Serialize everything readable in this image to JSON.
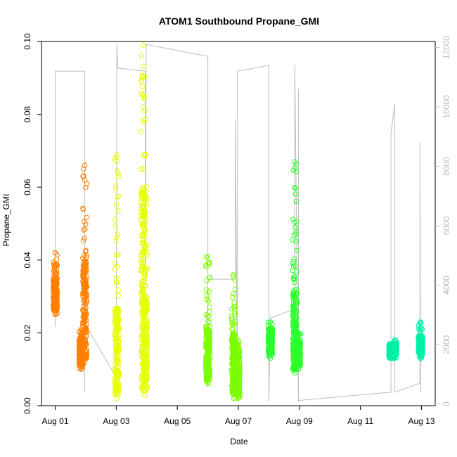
{
  "chart_data": {
    "type": "scatter",
    "title": "ATOM1 Southbound Propane_GMI",
    "xlabel": "Date",
    "ylabel": "Propane_GMI",
    "x_ticks": [
      "Aug 01",
      "Aug 03",
      "Aug 05",
      "Aug 07",
      "Aug 09",
      "Aug 11",
      "Aug 13"
    ],
    "x_tick_days": [
      1,
      3,
      5,
      7,
      9,
      11,
      13
    ],
    "xlim_days": [
      0.55,
      13.45
    ],
    "ylim": [
      0,
      0.1
    ],
    "y_ticks": [
      "0.00",
      "0.02",
      "0.04",
      "0.06",
      "0.08",
      "0.10"
    ],
    "y_tick_values": [
      0,
      0.02,
      0.04,
      0.06,
      0.08,
      0.1
    ],
    "y2_ticks": [
      "0",
      "2000",
      "4000",
      "6000",
      "8000",
      "10000",
      "12000"
    ],
    "y2_tick_values": [
      0,
      2000,
      4000,
      6000,
      8000,
      10000,
      12000
    ],
    "y2lim": [
      -55,
      12200
    ],
    "grid": false,
    "legend": "none",
    "series": [
      {
        "color": "#ff7f00",
        "clusters": [
          {
            "day": 1.0,
            "low": 0.025,
            "high": 0.042,
            "dense_low": 0.026,
            "dense_high": 0.035
          },
          {
            "day": 1.85,
            "low": 0.01,
            "high": 0.021,
            "dense_low": 0.011,
            "dense_high": 0.019
          },
          {
            "day": 1.97,
            "low": 0.012,
            "high": 0.066,
            "dense_low": 0.013,
            "dense_high": 0.04
          }
        ]
      },
      {
        "color": "#e6ff00",
        "clusters": [
          {
            "day": 3.02,
            "low": 0.002,
            "high": 0.069,
            "dense_low": 0.003,
            "dense_high": 0.027
          },
          {
            "day": 3.88,
            "low": 0.003,
            "high": 0.099,
            "dense_low": 0.004,
            "dense_high": 0.06
          },
          {
            "day": 3.95,
            "low": 0.003,
            "high": 0.069,
            "dense_low": 0.004,
            "dense_high": 0.03
          }
        ]
      },
      {
        "color": "#7cfc00",
        "clusters": [
          {
            "day": 6.0,
            "low": 0.006,
            "high": 0.041,
            "dense_low": 0.007,
            "dense_high": 0.022
          },
          {
            "day": 6.85,
            "low": 0.002,
            "high": 0.036,
            "dense_low": 0.003,
            "dense_high": 0.02
          },
          {
            "day": 6.98,
            "low": 0.002,
            "high": 0.018,
            "dense_low": 0.003,
            "dense_high": 0.016
          }
        ]
      },
      {
        "color": "#2aff2a",
        "clusters": [
          {
            "day": 8.05,
            "low": 0.013,
            "high": 0.023,
            "dense_low": 0.014,
            "dense_high": 0.021
          },
          {
            "day": 8.85,
            "low": 0.009,
            "high": 0.067,
            "dense_low": 0.01,
            "dense_high": 0.032
          },
          {
            "day": 8.97,
            "low": 0.01,
            "high": 0.02,
            "dense_low": 0.011,
            "dense_high": 0.018
          }
        ]
      },
      {
        "color": "#00f0a8",
        "clusters": [
          {
            "day": 12.0,
            "low": 0.013,
            "high": 0.017,
            "dense_low": 0.013,
            "dense_high": 0.017
          },
          {
            "day": 12.12,
            "low": 0.013,
            "high": 0.018,
            "dense_low": 0.014,
            "dense_high": 0.017
          },
          {
            "day": 12.97,
            "low": 0.013,
            "high": 0.023,
            "dense_low": 0.014,
            "dense_high": 0.019
          }
        ]
      }
    ],
    "secondary_series": {
      "color": "#bdbdbd",
      "points": [
        [
          1.0,
          11200
        ],
        [
          1.0,
          2600
        ],
        [
          1.0,
          11200
        ],
        [
          1.97,
          11200
        ],
        [
          1.97,
          400
        ],
        [
          1.97,
          10600
        ],
        [
          1.97,
          2700
        ],
        [
          3.0,
          900
        ],
        [
          3.02,
          11700
        ],
        [
          3.02,
          12100
        ],
        [
          3.05,
          11300
        ],
        [
          3.95,
          11200
        ],
        [
          3.95,
          2700
        ],
        [
          3.98,
          12100
        ],
        [
          6.0,
          11700
        ],
        [
          6.0,
          600
        ],
        [
          6.0,
          4200
        ],
        [
          6.9,
          4200
        ],
        [
          6.9,
          9600
        ],
        [
          6.97,
          400
        ],
        [
          6.97,
          11200
        ],
        [
          8.0,
          11400
        ],
        [
          8.0,
          60
        ],
        [
          8.05,
          2900
        ],
        [
          8.85,
          3200
        ],
        [
          8.85,
          11400
        ],
        [
          8.97,
          60
        ],
        [
          8.97,
          10600
        ],
        [
          8.97,
          120
        ],
        [
          12.0,
          400
        ],
        [
          12.0,
          9100
        ],
        [
          12.12,
          10100
        ],
        [
          12.12,
          400
        ],
        [
          12.95,
          700
        ],
        [
          12.95,
          8800
        ],
        [
          12.97,
          400
        ]
      ]
    }
  }
}
